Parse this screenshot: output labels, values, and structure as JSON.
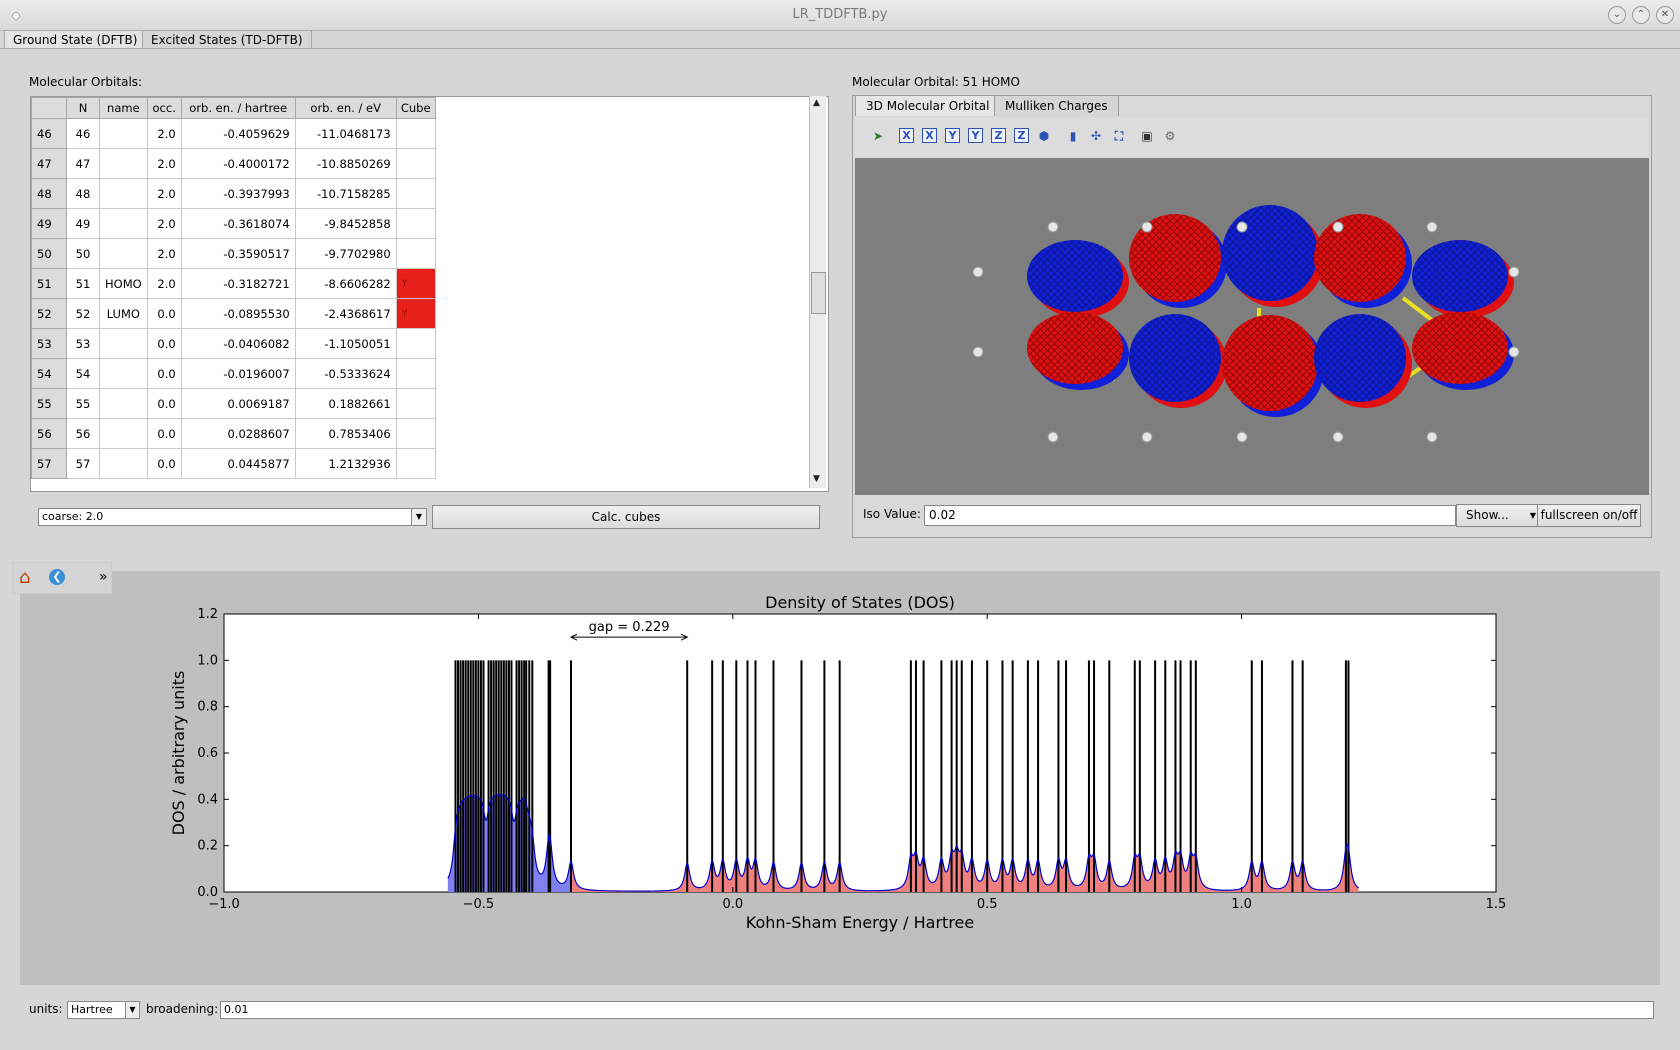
{
  "window": {
    "title": "LR_TDDFTB.py"
  },
  "tabs": [
    {
      "label": "Ground State (DFTB)",
      "active": true
    },
    {
      "label": "Excited States (TD-DFTB)",
      "active": false
    }
  ],
  "orbitals": {
    "label": "Molecular Orbitals:",
    "columns": [
      "N",
      "name",
      "occ.",
      "orb. en. / hartree",
      "orb. en. / eV",
      "Cube"
    ],
    "rows": [
      {
        "row": "46",
        "n": "46",
        "name": "",
        "occ": "2.0",
        "hartree": "-0.4059629",
        "ev": "-11.0468173",
        "cube": ""
      },
      {
        "row": "47",
        "n": "47",
        "name": "",
        "occ": "2.0",
        "hartree": "-0.4000172",
        "ev": "-10.8850269",
        "cube": ""
      },
      {
        "row": "48",
        "n": "48",
        "name": "",
        "occ": "2.0",
        "hartree": "-0.3937993",
        "ev": "-10.7158285",
        "cube": ""
      },
      {
        "row": "49",
        "n": "49",
        "name": "",
        "occ": "2.0",
        "hartree": "-0.3618074",
        "ev": "-9.8452858",
        "cube": ""
      },
      {
        "row": "50",
        "n": "50",
        "name": "",
        "occ": "2.0",
        "hartree": "-0.3590517",
        "ev": "-9.7702980",
        "cube": ""
      },
      {
        "row": "51",
        "n": "51",
        "name": "HOMO",
        "occ": "2.0",
        "hartree": "-0.3182721",
        "ev": "-8.6606282",
        "cube": "Y"
      },
      {
        "row": "52",
        "n": "52",
        "name": "LUMO",
        "occ": "0.0",
        "hartree": "-0.0895530",
        "ev": "-2.4368617",
        "cube": "Y"
      },
      {
        "row": "53",
        "n": "53",
        "name": "",
        "occ": "0.0",
        "hartree": "-0.0406082",
        "ev": "-1.1050051",
        "cube": ""
      },
      {
        "row": "54",
        "n": "54",
        "name": "",
        "occ": "0.0",
        "hartree": "-0.0196007",
        "ev": "-0.5333624",
        "cube": ""
      },
      {
        "row": "55",
        "n": "55",
        "name": "",
        "occ": "0.0",
        "hartree": "0.0069187",
        "ev": "0.1882661",
        "cube": ""
      },
      {
        "row": "56",
        "n": "56",
        "name": "",
        "occ": "0.0",
        "hartree": "0.0288607",
        "ev": "0.7853406",
        "cube": ""
      },
      {
        "row": "57",
        "n": "57",
        "name": "",
        "occ": "0.0",
        "hartree": "0.0445877",
        "ev": "1.2132936",
        "cube": ""
      }
    ],
    "resolution_value": "coarse: 2.0",
    "calc_button": "Calc. cubes"
  },
  "mo_panel": {
    "title": "Molecular Orbital: 51 HOMO",
    "subtabs": [
      "3D Molecular Orbital",
      "Mulliken Charges"
    ],
    "iso_label": "Iso Value:",
    "iso_value": "0.02",
    "show_button": "Show...",
    "fullscreen_button": "fullscreen on/off",
    "lobe_colors": {
      "positive": "#e01010",
      "negative": "#1020d8"
    }
  },
  "plot_toolbar": {
    "icons": [
      "home-icon",
      "back-icon"
    ],
    "more": "»"
  },
  "chart_data": {
    "type": "line",
    "title": "Density of States (DOS)",
    "xlabel": "Kohn-Sham Energy / Hartree",
    "ylabel": "DOS / arbitrary units",
    "xlim": [
      -1.0,
      1.5
    ],
    "ylim": [
      0.0,
      1.2
    ],
    "xticks": [
      -1.0,
      -0.5,
      0.0,
      0.5,
      1.0,
      1.5
    ],
    "xtick_labels": [
      "−1.0",
      "−0.5",
      "0.0",
      "0.5",
      "1.0",
      "1.5"
    ],
    "yticks": [
      0.0,
      0.2,
      0.4,
      0.6,
      0.8,
      1.0,
      1.2
    ],
    "ytick_labels": [
      "0.0",
      "0.2",
      "0.4",
      "0.6",
      "0.8",
      "1.0",
      "1.2"
    ],
    "gap_annotation": {
      "text": "gap = 0.229",
      "from": -0.318,
      "to": -0.0896
    },
    "occupied_levels": [
      -0.545,
      -0.54,
      -0.535,
      -0.53,
      -0.525,
      -0.52,
      -0.515,
      -0.51,
      -0.505,
      -0.5,
      -0.495,
      -0.49,
      -0.48,
      -0.475,
      -0.47,
      -0.465,
      -0.46,
      -0.455,
      -0.45,
      -0.445,
      -0.44,
      -0.435,
      -0.425,
      -0.42,
      -0.415,
      -0.41,
      -0.406,
      -0.4,
      -0.394,
      -0.362,
      -0.359,
      -0.318
    ],
    "virtual_levels": [
      -0.0896,
      -0.0406,
      -0.0196,
      0.0069,
      0.0289,
      0.0446,
      0.08,
      0.135,
      0.18,
      0.21,
      0.35,
      0.36,
      0.375,
      0.41,
      0.43,
      0.44,
      0.45,
      0.47,
      0.5,
      0.53,
      0.55,
      0.58,
      0.6,
      0.64,
      0.655,
      0.7,
      0.71,
      0.74,
      0.79,
      0.8,
      0.83,
      0.85,
      0.87,
      0.88,
      0.9,
      0.91,
      1.02,
      1.04,
      1.1,
      1.12,
      1.205,
      1.21
    ],
    "colors": {
      "occupied_fill": "#8080f0",
      "virtual_fill": "#f08080",
      "curve": "#0000cc",
      "levels": "#000000"
    },
    "grid": false
  },
  "bottom": {
    "units_label": "units:",
    "units_value": "Hartree",
    "broadening_label": "broadening:",
    "broadening_value": "0.01"
  }
}
